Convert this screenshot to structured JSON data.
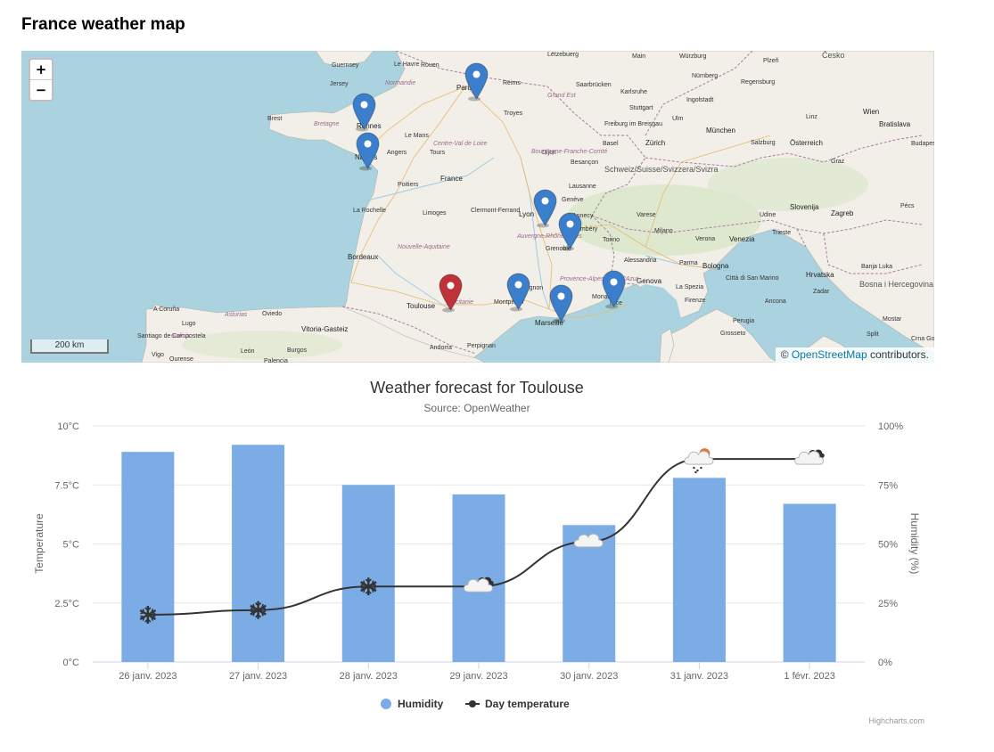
{
  "page": {
    "title": "France weather map"
  },
  "map": {
    "zoom_in_label": "+",
    "zoom_out_label": "−",
    "scale_label": "200 km",
    "attribution_prefix": "© ",
    "attribution_link": "OpenStreetMap",
    "attribution_suffix": " contributors.",
    "colors": {
      "marker_default": "#3b7ecb",
      "marker_selected": "#c0323a",
      "sea": "#aad3df",
      "land": "#f2efe9"
    },
    "markers": [
      {
        "city": "Paris",
        "selected": false
      },
      {
        "city": "Rennes",
        "selected": false
      },
      {
        "city": "Nantes",
        "selected": false
      },
      {
        "city": "Lyon",
        "selected": false
      },
      {
        "city": "Grenoble",
        "selected": false
      },
      {
        "city": "Montpellier",
        "selected": false
      },
      {
        "city": "Marseille",
        "selected": false
      },
      {
        "city": "Monaco",
        "selected": false
      },
      {
        "city": "Toulouse",
        "selected": true
      }
    ],
    "labels": [
      "Guernsey",
      "Jersey",
      "Le Havre",
      "Rouen",
      "Paris",
      "Reims",
      "Lëtzebuerg",
      "Main",
      "Würzburg",
      "Plzeň",
      "Česko",
      "Brest",
      "Rennes",
      "Le Mans",
      "Troyes",
      "Saarbrücken",
      "Karlsruhe",
      "Stuttgart",
      "Ulm",
      "Nürnberg",
      "Ingolstadt",
      "Regensburg",
      "Angers",
      "Tours",
      "Nantes",
      "Dijon",
      "Freiburg im Breisgau",
      "Basel",
      "Zürich",
      "München",
      "Salzburg",
      "Linz",
      "Wien",
      "Bratislava",
      "Poitiers",
      "France",
      "Besançon",
      "Schweiz/Suisse/Svizzera/Svizra",
      "Österreich",
      "Graz",
      "Budapest",
      "La Rochelle",
      "Limoges",
      "Clermont-Ferrand",
      "Lyon",
      "Genève",
      "Lausanne",
      "Annecy",
      "Chambéry",
      "Udine",
      "Slovenija",
      "Zagreb",
      "Bordeaux",
      "Grenoble",
      "Varese",
      "Milano",
      "Torino",
      "Verona",
      "Venezia",
      "Trieste",
      "Pécs",
      "Nouvelle-Aquitaine",
      "Occitanie",
      "Toulouse",
      "Montpellier",
      "Avignon",
      "Marseille",
      "Monaco",
      "Nice",
      "Alessandria",
      "Genova",
      "Parma",
      "Bologna",
      "La Spezia",
      "Firenze",
      "Perugia",
      "Città di San Marino",
      "Ancona",
      "Hrvatska",
      "Banja Luka",
      "Bosna i Hercegovina",
      "Zadar",
      "Mostar",
      "A Coruña",
      "Lugo",
      "Santiago de Compostela",
      "Oviedo",
      "León",
      "Vigo",
      "Ourense",
      "Burgos",
      "Palencia",
      "Vitoria-Gasteiz",
      "Andorra",
      "Perpignan",
      "Asturias",
      "Galicia",
      "Grosseto",
      "Split",
      "Crna Gora",
      "Normandie",
      "Bretagne",
      "Centre-Val de Loire",
      "Grand Est",
      "Bourgogne-Franche-Comté",
      "Auvergne-Rhône-Alpes",
      "Provence-Alpes-Côte d'Azur"
    ]
  },
  "chart_data": {
    "type": "bar+line",
    "title": "Weather forecast for Toulouse",
    "subtitle": "Source: OpenWeather",
    "categories": [
      "26 janv. 2023",
      "27 janv. 2023",
      "28 janv. 2023",
      "29 janv. 2023",
      "30 janv. 2023",
      "31 janv. 2023",
      "1 févr. 2023"
    ],
    "series": [
      {
        "name": "Humidity",
        "type": "bar",
        "axis": "right",
        "color": "#7cace6",
        "unit": "%",
        "values": [
          89,
          92,
          75,
          71,
          58,
          78,
          67
        ]
      },
      {
        "name": "Day temperature",
        "type": "line",
        "axis": "left",
        "color": "#333333",
        "unit": "°C",
        "values": [
          2.0,
          2.2,
          3.2,
          3.2,
          5.1,
          8.6,
          8.6
        ],
        "icons": [
          "snow-icon",
          "snow-icon",
          "snow-icon",
          "cloudy-icon",
          "cloud-icon",
          "rain-sun-icon",
          "cloudy-icon"
        ]
      }
    ],
    "yaxis_left": {
      "title": "Temperature",
      "min": 0,
      "max": 10,
      "ticks": [
        "0°C",
        "2.5°C",
        "5°C",
        "7.5°C",
        "10°C"
      ]
    },
    "yaxis_right": {
      "title": "Humidity (%)",
      "min": 0,
      "max": 100,
      "ticks": [
        "0%",
        "25%",
        "50%",
        "75%",
        "100%"
      ]
    },
    "grid": true,
    "legend_position": "bottom-center",
    "credits": "Highcharts.com"
  }
}
